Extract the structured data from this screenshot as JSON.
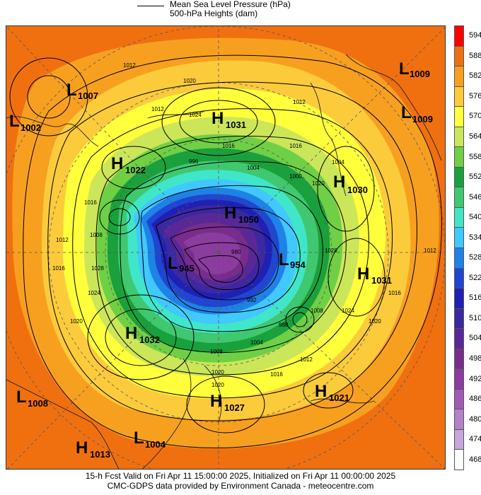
{
  "legend": {
    "line1": "Mean Sea Level Pressure (hPa)",
    "line2": "500-hPa Heights (dam)"
  },
  "colorbar": {
    "labels": [
      "594",
      "588",
      "582",
      "576",
      "570",
      "564",
      "558",
      "552",
      "546",
      "540",
      "534",
      "528",
      "522",
      "516",
      "510",
      "504",
      "498",
      "492",
      "486",
      "480",
      "474",
      "468"
    ],
    "colors": [
      "#ff0000",
      "#f07010",
      "#f7a020",
      "#fccb3c",
      "#ffff3c",
      "#cce65a",
      "#6fd046",
      "#1aa03c",
      "#40c870",
      "#40e6c8",
      "#40c8ff",
      "#1e82e6",
      "#1e46d2",
      "#2020b4",
      "#3c28a0",
      "#5a2896",
      "#782d8c",
      "#8c3ca0",
      "#a05ab4",
      "#b482c8",
      "#c8a5dc",
      "#ffffff"
    ]
  },
  "centers": [
    {
      "type": "L",
      "value": "1009",
      "id": "l-1009-ne"
    },
    {
      "type": "L",
      "value": "1007",
      "id": "l-1007"
    },
    {
      "type": "L",
      "value": "1002",
      "id": "l-1002"
    },
    {
      "type": "H",
      "value": "1031",
      "id": "h-1031-n"
    },
    {
      "type": "L",
      "value": "1009",
      "id": "l-1009-e"
    },
    {
      "type": "H",
      "value": "1022",
      "id": "h-1022"
    },
    {
      "type": "H",
      "value": "1030",
      "id": "h-1030"
    },
    {
      "type": "H",
      "value": "1050",
      "id": "h-1050"
    },
    {
      "type": "L",
      "value": "945",
      "id": "l-945"
    },
    {
      "type": "L",
      "value": "954",
      "id": "l-954"
    },
    {
      "type": "H",
      "value": "1031",
      "id": "h-1031-e"
    },
    {
      "type": "H",
      "value": "1032",
      "id": "h-1032"
    },
    {
      "type": "L",
      "value": "1008",
      "id": "l-1008"
    },
    {
      "type": "H",
      "value": "1027",
      "id": "h-1027"
    },
    {
      "type": "H",
      "value": "1021",
      "id": "h-1021"
    },
    {
      "type": "L",
      "value": "1004",
      "id": "l-1004"
    },
    {
      "type": "H",
      "value": "1013",
      "id": "h-1013"
    }
  ],
  "isobar_labels": [
    "1012",
    "1020",
    "1024",
    "1016",
    "1008",
    "1004",
    "996",
    "992",
    "1000",
    "988",
    "1028",
    "980",
    "1036"
  ],
  "footer": {
    "line1": "15-h Fcst Valid on Fri Apr 11 15:00:00 2025, Initialized on Fri Apr 11 00:00:00 2025",
    "line2": "CMC-GDPS data provided by Environment Canada - meteocentre.com"
  }
}
